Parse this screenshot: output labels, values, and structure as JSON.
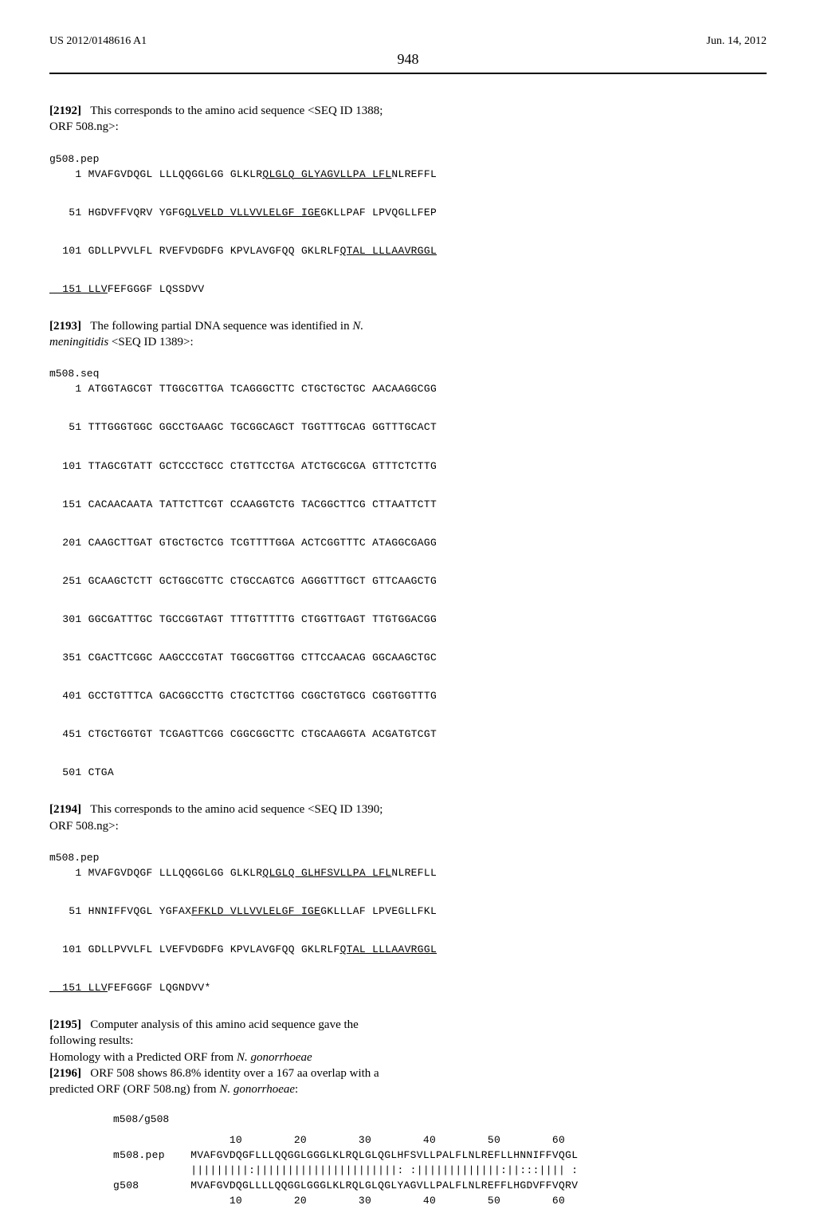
{
  "header": {
    "pub_id": "US 2012/0148616 A1",
    "pub_date": "Jun. 14, 2012",
    "page_no": "948"
  },
  "para1": {
    "num": "[2192]",
    "text_a": "This corresponds to the amino acid sequence <SEQ ID 1388; ORF 508.ng>:"
  },
  "seq_g508_pep": {
    "label": "g508.pep",
    "line1_a": "    1 MVAFGVDQGL LLLQQGGLGG GLKLR",
    "line1_u": "QLGLQ GLYAGVLLPA LFL",
    "line1_b": "NLREFFL",
    "line2_a": "   51 HGDVFFVQRV YGFG",
    "line2_u": "QLVELD VLLVVLELGF IGE",
    "line2_b": "GKLLPAF LPVQGLLFEP",
    "line3": "  101 GDLLPVVLFL RVEFVDGDFG KPVLAVGFQQ GKLRLF",
    "line3_u": "QTAL LLLAAVRGGL",
    "line4_u": "  151 LLV",
    "line4_b": "FEFGGGF LQSSDVV"
  },
  "para2": {
    "num": "[2193]",
    "text_a": "The following partial DNA sequence was identified in ",
    "text_italic": "N. meningitidis",
    "text_b": " <SEQ ID 1389>:"
  },
  "seq_m508_dna": {
    "label": "m508.seq",
    "lines": [
      "    1 ATGGTAGCGT TTGGCGTTGA TCAGGGCTTC CTGCTGCTGC AACAAGGCGG",
      "   51 TTTGGGTGGC GGCCTGAAGC TGCGGCAGCT TGGTTTGCAG GGTTTGCACT",
      "  101 TTAGCGTATT GCTCCCTGCC CTGTTCCTGA ATCTGCGCGA GTTTCTCTTG",
      "  151 CACAACAATA TATTCTTCGT CCAAGGTCTG TACGGCTTCG CTTAATTCTT",
      "  201 CAAGCTTGAT GTGCTGCTCG TCGTTTTGGA ACTCGGTTTC ATAGGCGAGG",
      "  251 GCAAGCTCTT GCTGGCGTTC CTGCCAGTCG AGGGTTTGCT GTTCAAGCTG",
      "  301 GGCGATTTGC TGCCGGTAGT TTTGTTTTTG CTGGTTGAGT TTGTGGACGG",
      "  351 CGACTTCGGC AAGCCCGTAT TGGCGGTTGG CTTCCAACAG GGCAAGCTGC",
      "  401 GCCTGTTTCA GACGGCCTTG CTGCTCTTGG CGGCTGTGCG CGGTGGTTTG",
      "  451 CTGCTGGTGT TCGAGTTCGG CGGCGGCTTC CTGCAAGGTA ACGATGTCGT",
      "  501 CTGA"
    ]
  },
  "para3": {
    "num": "[2194]",
    "text": "This corresponds to the amino acid sequence <SEQ ID 1390; ORF 508.ng>:"
  },
  "seq_m508_pep": {
    "label": "m508.pep",
    "line1_a": "    1 MVAFGVDQGF LLLQQGGLGG GLKLR",
    "line1_u": "QLGLQ GLHFSVLLPA LFL",
    "line1_b": "NLREFLL",
    "line2_a": "   51 HNNIFFVQGL YGFAX",
    "line2_u": "FFKLD VLLVVLELGF IGE",
    "line2_b": "GKLLLAF LPVEGLLFKL",
    "line3_a": "  101 GDLLPVVLFL LVEFVDGDFG KPVLAVGFQQ GKLRLF",
    "line3_u": "QTAL LLLAAVRGGL",
    "line4_u": "  151 LLV",
    "line4_b": "FEFGGGF LQGNDVV*"
  },
  "para4": {
    "num": "[2195]",
    "text": "Computer analysis of this amino acid sequence gave the following results:"
  },
  "homology": {
    "title_a": "Homology with a Predicted ORF from ",
    "title_italic": "N. gonorrhoeae",
    "num": "[2196]",
    "text_a": "ORF 508 shows 86.8% identity over a 167 aa overlap with a predicted ORF (ORF 508.ng) from ",
    "text_italic": "N. gonorrhoeae",
    "text_b": ":"
  },
  "alignment": {
    "label": "m508/g508",
    "ruler_top": "                  10        20        30        40        50        60",
    "row1_label": "m508.pep",
    "row1_seq": "MVAFGVDQGFLLLQQGGLGGGLKLRQLGLQGLHFSVLLPALFLNLREFLLHNNIFFVQGL",
    "match": "|||||||||:||||||||||||||||||||||: :|||||||||||||:||:::|||| :",
    "row2_label": "g508",
    "row2_seq": "MVAFGVDQGLLLLQQGGLGGGLKLRQLGLQGLYAGVLLPALFLNLREFFLHGDVFFVQRV",
    "ruler_bot": "                  10        20        30        40        50        60"
  }
}
